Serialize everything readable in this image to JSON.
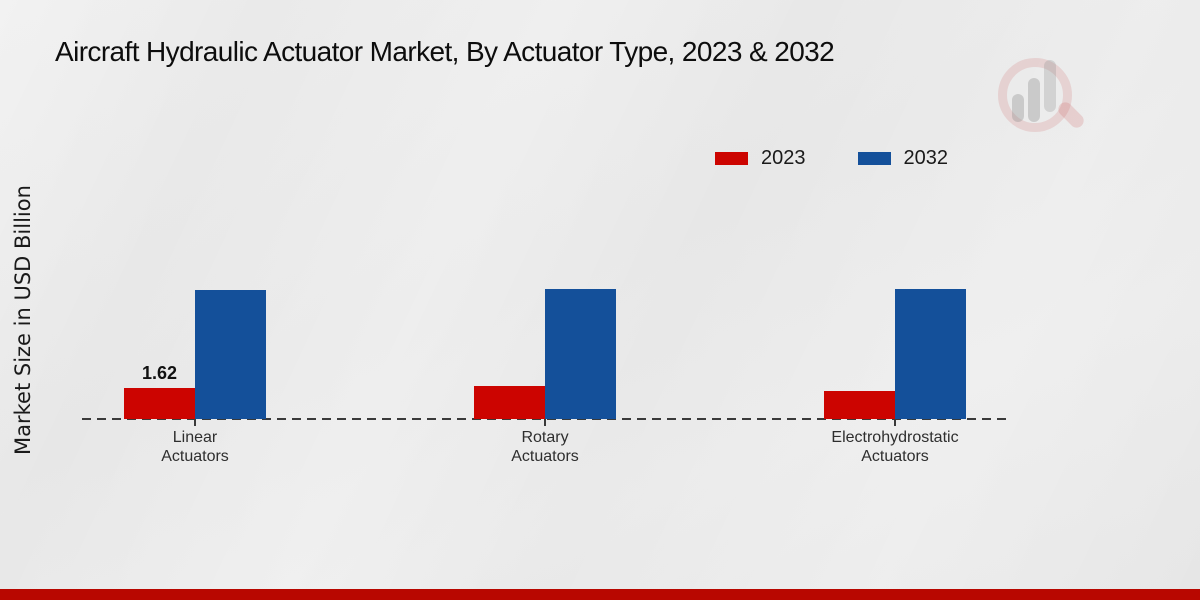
{
  "page": {
    "title": "Aircraft Hydraulic Actuator Market, By Actuator Type, 2023 & 2032"
  },
  "y_axis": {
    "label": "Market Size in USD Billion"
  },
  "legend": {
    "position": "upper-right",
    "items": [
      {
        "label": "2023",
        "color": "#cc0400"
      },
      {
        "label": "2032",
        "color": "#14509a"
      }
    ]
  },
  "chart_data": {
    "type": "bar",
    "title": "Aircraft Hydraulic Actuator Market, By Actuator Type, 2023 & 2032",
    "xlabel": "",
    "ylabel": "Market Size in USD Billion",
    "categories": [
      "Linear\nActuators",
      "Rotary\nActuators",
      "Electrohydrostatic\nActuators"
    ],
    "series": [
      {
        "name": "2023",
        "color": "#cc0400",
        "values": [
          1.62,
          1.72,
          1.47
        ],
        "data_labels": [
          "1.62",
          "",
          ""
        ]
      },
      {
        "name": "2032",
        "color": "#14509a",
        "values": [
          6.75,
          6.8,
          6.8
        ],
        "data_labels": [
          "",
          "",
          ""
        ]
      }
    ],
    "ylim": [
      0,
      8.5
    ],
    "grid": false,
    "baseline_style": "dashed",
    "legend_position": "upper-right"
  },
  "colors": {
    "background": "#e9e9e9",
    "banner": "#b80700",
    "axis_line": "#3a3a3a",
    "title_text": "#0d0d0d",
    "category_text": "#2e2e2e"
  },
  "watermark": {
    "icon": "magnifier-bar-chart-logo"
  }
}
